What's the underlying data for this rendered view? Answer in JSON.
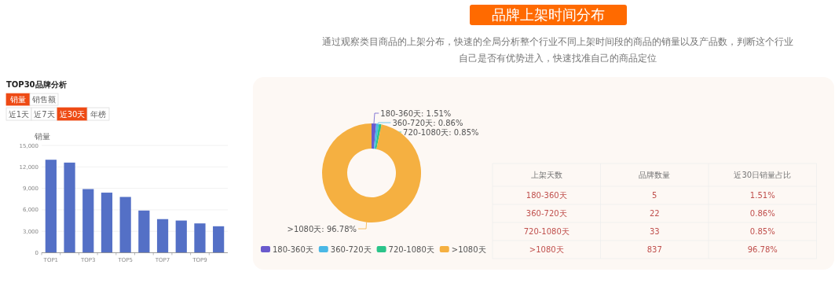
{
  "chart_data": [
    {
      "type": "other",
      "title": "品牌上架时间分布",
      "subtitle": "通过观察类目商品的上架分布，快速的全局分析整个行业不同上架时间段的商品的销量以及产品数，判断这个行业自己是否有优势进入，快速找准自己的商品定位"
    },
    {
      "type": "bar",
      "title": "TOP30品牌分析",
      "ylabel": "销量",
      "annotations": [
        "销量",
        "销售额",
        "近1天",
        "近7天",
        "近30天",
        "年榜"
      ],
      "categories": [
        "TOP1",
        null,
        "TOP3",
        null,
        "TOP5",
        null,
        "TOP7",
        null,
        "TOP9",
        null
      ],
      "values": [
        13000,
        12600,
        8900,
        8400,
        7800,
        5900,
        4700,
        4500,
        4100,
        3700
      ],
      "color": "#5470c6",
      "ylim": [
        0,
        15000
      ],
      "yticks": [
        0,
        {
          "value": 3000,
          "label": "3,000"
        },
        {
          "value": 6000,
          "label": "6,000"
        },
        {
          "value": 9000,
          "label": "9,000"
        },
        {
          "value": 12000,
          "label": "12,000"
        },
        {
          "value": 15000,
          "label": "15,000"
        }
      ],
      "grid": "y"
    },
    {
      "type": "donut",
      "categories": [
        "180-360天",
        "360-720天",
        "720-1080天",
        ">1080天"
      ],
      "values": [
        1.51,
        0.86,
        0.85,
        96.78
      ],
      "value_labels": [
        "180-360天: 1.51%",
        "360-720天: 0.86%",
        "720-1080天: 0.85%",
        ">1080天: 96.78%"
      ],
      "colors": [
        "#6a5acd",
        "#4ab8e6",
        "#2bc48a",
        "#f5b041"
      ],
      "legend": "bottom"
    },
    {
      "type": "other",
      "xlabel": "上架天数",
      "categories": [
        "180-360天",
        "360-720天",
        "720-1080天",
        ">1080天"
      ],
      "series": [
        {
          "name": "品牌数量",
          "values": [
            5,
            22,
            33,
            837
          ]
        },
        {
          "name": "近30日销量占比",
          "values": [
            1.51,
            0.86,
            0.85,
            96.78
          ],
          "value_labels": [
            "1.51%",
            "0.86%",
            "0.85%",
            "96.78%"
          ]
        }
      ],
      "data_labels": true
    }
  ]
}
